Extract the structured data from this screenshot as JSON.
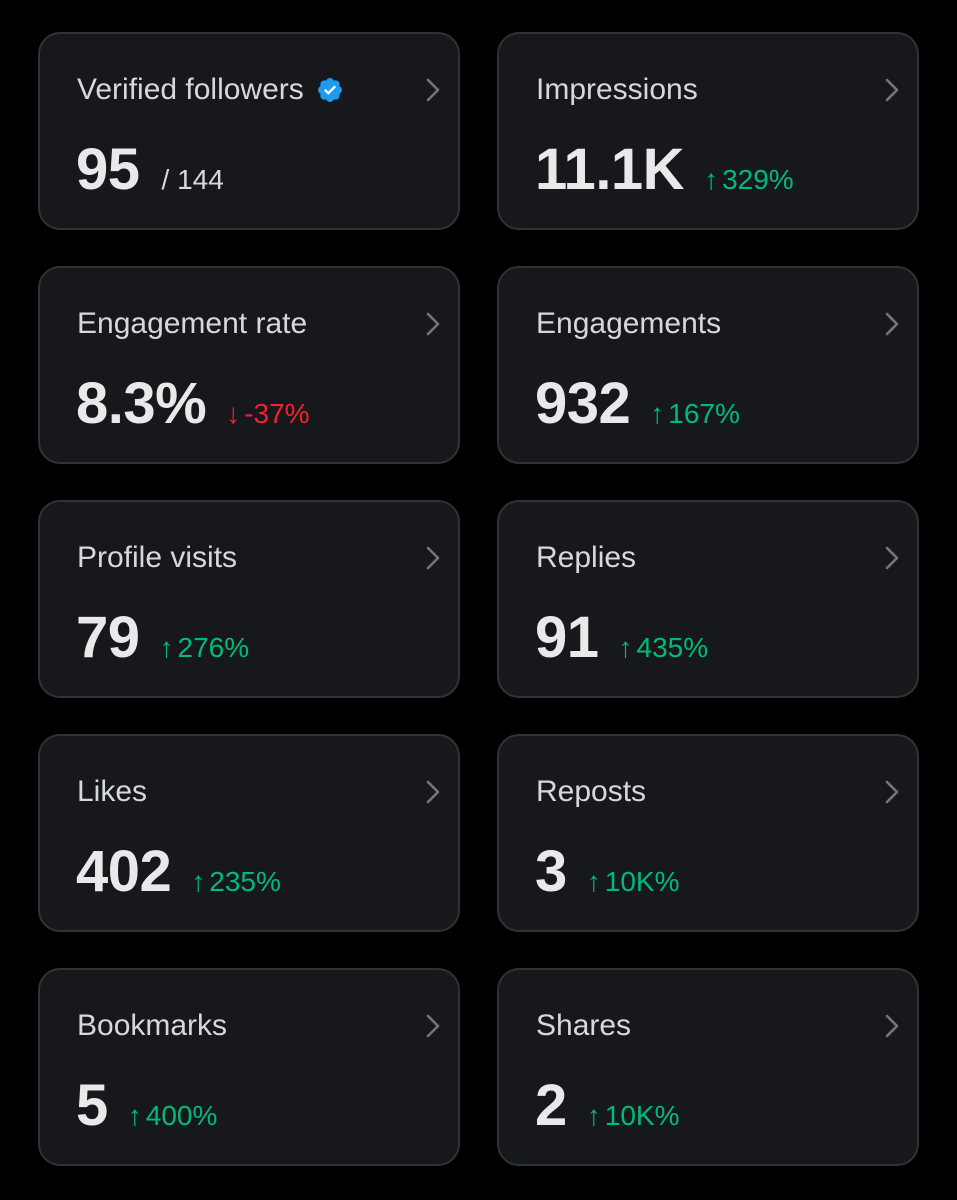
{
  "colors": {
    "background": "#000000",
    "card": "#16181c",
    "border": "#2f3336",
    "positive": "#00ba7c",
    "negative": "#f4212e",
    "verified": "#1d9bf0"
  },
  "cards": [
    {
      "title": "Verified followers",
      "value": "95",
      "total": "/ 144",
      "change": "",
      "direction": "none",
      "icon": "verified-badge-icon"
    },
    {
      "title": "Impressions",
      "value": "11.1K",
      "total": "",
      "change": "329%",
      "direction": "up"
    },
    {
      "title": "Engagement rate",
      "value": "8.3%",
      "total": "",
      "change": "-37%",
      "direction": "down"
    },
    {
      "title": "Engagements",
      "value": "932",
      "total": "",
      "change": "167%",
      "direction": "up"
    },
    {
      "title": "Profile visits",
      "value": "79",
      "total": "",
      "change": "276%",
      "direction": "up"
    },
    {
      "title": "Replies",
      "value": "91",
      "total": "",
      "change": "435%",
      "direction": "up"
    },
    {
      "title": "Likes",
      "value": "402",
      "total": "",
      "change": "235%",
      "direction": "up"
    },
    {
      "title": "Reposts",
      "value": "3",
      "total": "",
      "change": "10K%",
      "direction": "up"
    },
    {
      "title": "Bookmarks",
      "value": "5",
      "total": "",
      "change": "400%",
      "direction": "up"
    },
    {
      "title": "Shares",
      "value": "2",
      "total": "",
      "change": "10K%",
      "direction": "up"
    }
  ]
}
